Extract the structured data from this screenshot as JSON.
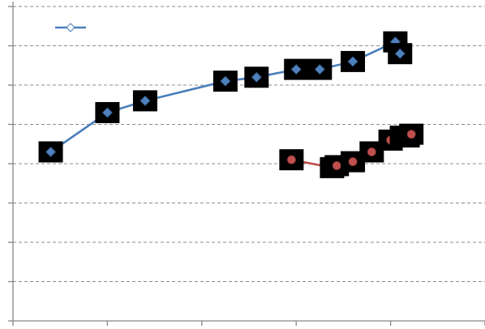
{
  "chart_data": {
    "type": "line",
    "grid": true,
    "legend": "top-left",
    "xlim": [
      0,
      5
    ],
    "ylim": [
      0,
      8
    ],
    "series": [
      {
        "color": "#4A7EBB",
        "marker_fill": "#4F81BD",
        "marker": "diamond",
        "points": [
          [
            0.4,
            4.3
          ],
          [
            1.0,
            5.3
          ],
          [
            1.4,
            5.6
          ],
          [
            2.25,
            6.1
          ],
          [
            2.58,
            6.2
          ],
          [
            3.0,
            6.4
          ],
          [
            3.25,
            6.4
          ],
          [
            3.6,
            6.6
          ],
          [
            4.05,
            7.1
          ],
          [
            4.1,
            6.8
          ]
        ]
      },
      {
        "color": "#BE4B48",
        "marker_fill": "#C0504D",
        "marker": "circle",
        "points": [
          [
            2.95,
            4.1
          ],
          [
            3.38,
            3.9
          ],
          [
            3.43,
            3.95
          ],
          [
            3.6,
            4.05
          ],
          [
            3.8,
            4.3
          ],
          [
            4.0,
            4.6
          ],
          [
            4.12,
            4.7
          ],
          [
            4.18,
            4.68
          ],
          [
            4.22,
            4.75
          ]
        ]
      }
    ]
  }
}
